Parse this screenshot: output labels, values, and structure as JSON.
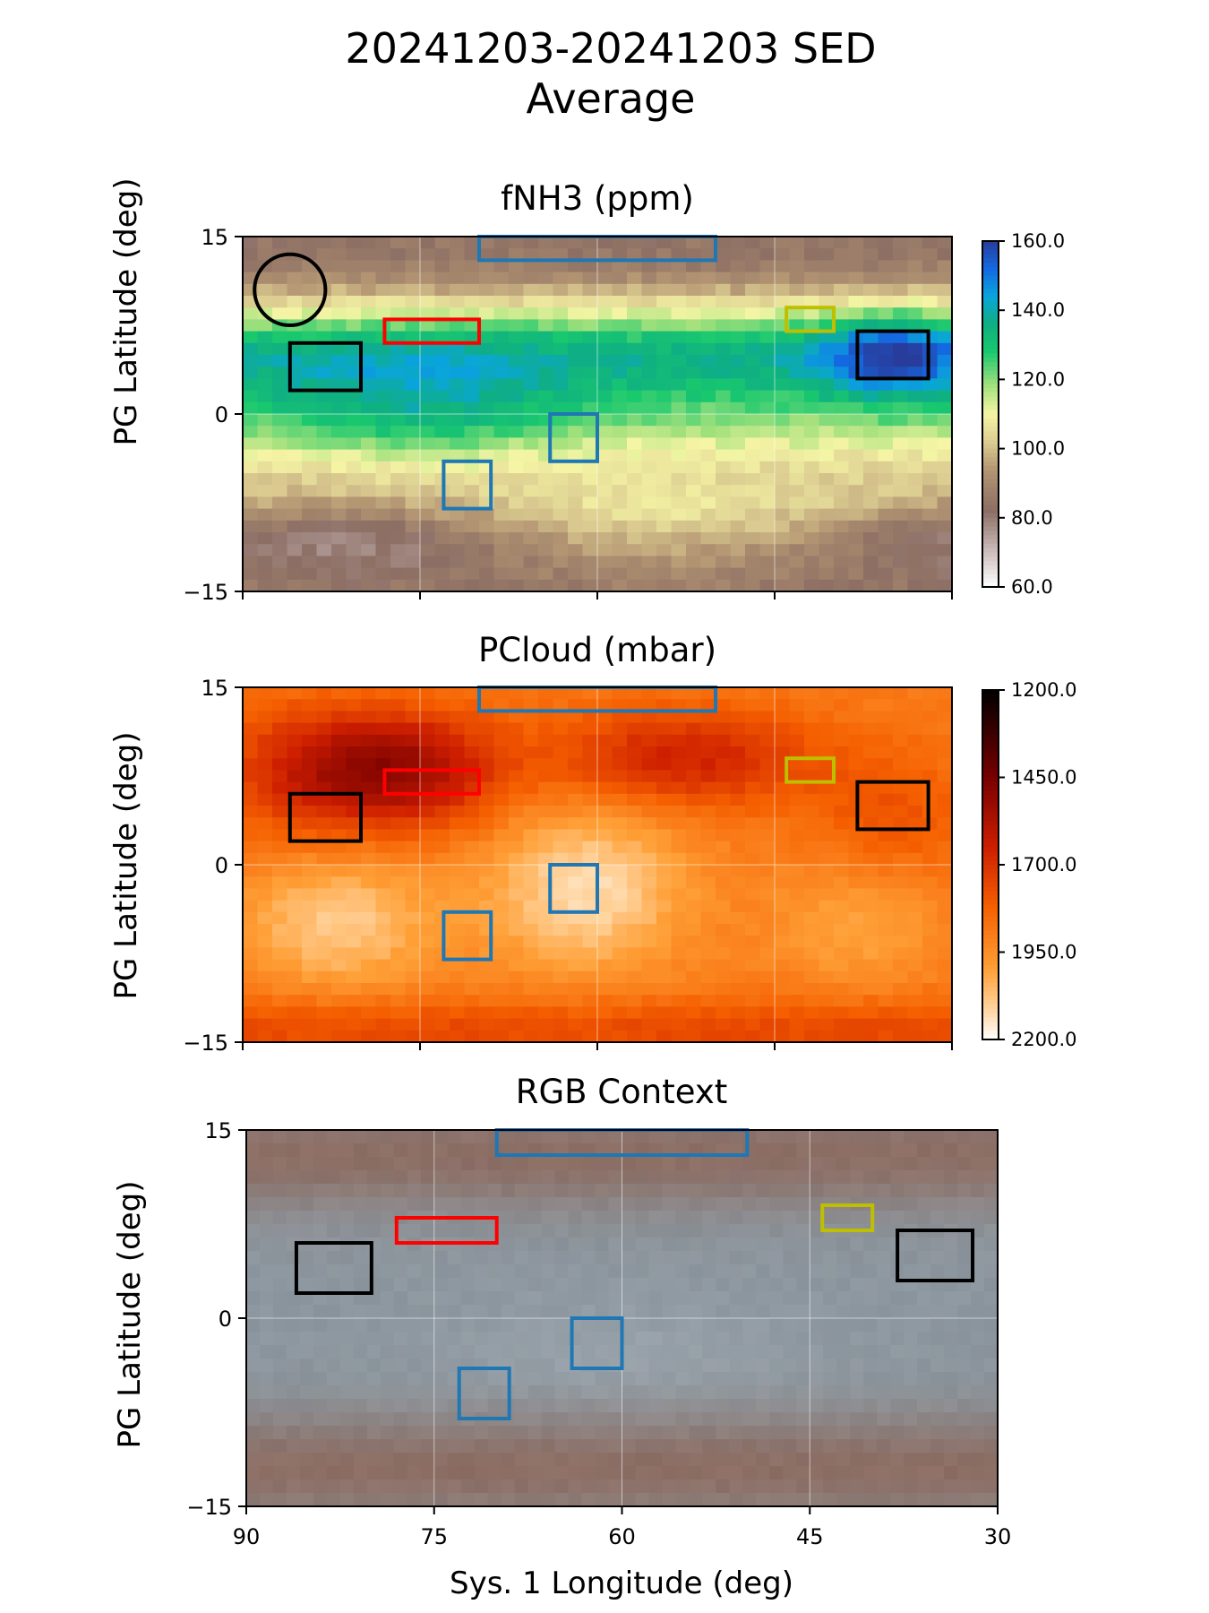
{
  "figure": {
    "title_line1": "20241203-20241203 SED",
    "title_line2": "Average"
  },
  "chart_data": [
    {
      "type": "heatmap",
      "title": "fNH3 (ppm)",
      "xlabel": "",
      "ylabel": "PG Latitude (deg)",
      "xlim": [
        90,
        30
      ],
      "ylim": [
        -15,
        15
      ],
      "x_ticks": [
        90,
        75,
        60,
        45,
        30
      ],
      "y_ticks": [
        {
          "value": 15,
          "label": "15"
        },
        {
          "value": 0,
          "label": "0"
        },
        {
          "value": -15,
          "label": "−15"
        }
      ],
      "grid": true,
      "colorbar": {
        "ticks": [
          "160.0",
          "140.0",
          "120.0",
          "100.0",
          "80.0",
          "60.0"
        ],
        "range": [
          60,
          160
        ],
        "colormap": "terrain-like (white, brown, khaki, yellow, green, cyan, blue)"
      },
      "field_description": "Low values (~80-95) north of 11 deg and south of -10 deg; peak ~120-150 in equatorial band 0-8 deg; highest ~150 near lon 35 lat 5"
    },
    {
      "type": "heatmap",
      "title": "PCloud (mbar)",
      "xlabel": "",
      "ylabel": "PG Latitude (deg)",
      "xlim": [
        90,
        30
      ],
      "ylim": [
        -15,
        15
      ],
      "x_ticks": [
        90,
        75,
        60,
        45,
        30
      ],
      "y_ticks": [
        {
          "value": 15,
          "label": "15"
        },
        {
          "value": 0,
          "label": "0"
        },
        {
          "value": -15,
          "label": "−15"
        }
      ],
      "grid": true,
      "colorbar": {
        "ticks": [
          "1200.0",
          "1450.0",
          "1700.0",
          "1950.0",
          "2200.0"
        ],
        "range": [
          1200,
          2200
        ],
        "inverted": true,
        "colormap": "gist_heat"
      },
      "field_description": "Deepest red (~1500) near lon 77 lat 8; pale (~2150) blobs near lon 60 lat -2 and lon 82 lat -5"
    },
    {
      "type": "heatmap",
      "title": "RGB Context",
      "xlabel": "Sys. 1 Longitude (deg)",
      "ylabel": "PG Latitude (deg)",
      "xlim": [
        90,
        30
      ],
      "ylim": [
        -15,
        15
      ],
      "x_ticks": [
        90,
        75,
        60,
        45,
        30
      ],
      "y_ticks": [
        {
          "value": 15,
          "label": "15"
        },
        {
          "value": 0,
          "label": "0"
        },
        {
          "value": -15,
          "label": "−15"
        }
      ],
      "grid": true,
      "field_description": "True-color image: brownish belts near top and bottom, grey-blue equatorial zone"
    }
  ],
  "annotations": {
    "circle": {
      "lon": 86,
      "lat": 10.5,
      "radius_deg": 3,
      "color": "#000000",
      "panels": [
        0
      ]
    },
    "boxes": [
      {
        "lon1": 70,
        "lon2": 50,
        "lat1": 13,
        "lat2": 15,
        "color": "#1f77b4"
      },
      {
        "lon1": 78,
        "lon2": 70,
        "lat1": 6,
        "lat2": 8,
        "color": "#ff0000"
      },
      {
        "lon1": 86,
        "lon2": 80,
        "lat1": 2,
        "lat2": 6,
        "color": "#000000"
      },
      {
        "lon1": 64,
        "lon2": 60,
        "lat1": -4,
        "lat2": 0,
        "color": "#1f77b4"
      },
      {
        "lon1": 73,
        "lon2": 69,
        "lat1": -8,
        "lat2": -4,
        "color": "#1f77b4"
      },
      {
        "lon1": 44,
        "lon2": 40,
        "lat1": 7,
        "lat2": 9,
        "color": "#bfbf00"
      },
      {
        "lon1": 38,
        "lon2": 32,
        "lat1": 3,
        "lat2": 7,
        "color": "#000000"
      }
    ]
  }
}
